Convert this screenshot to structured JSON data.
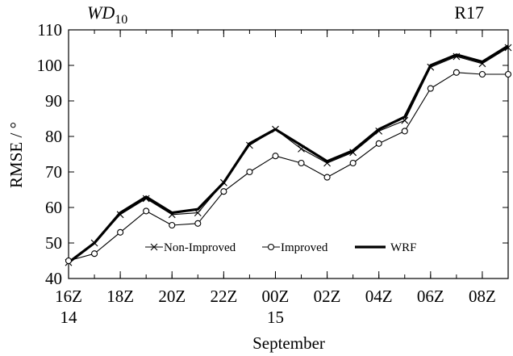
{
  "chart_data": {
    "type": "line",
    "title": "WD",
    "title_subscript": "10",
    "panel_label": "R17",
    "xlabel": "September",
    "ylabel": "RMSE / °",
    "ylim": [
      40,
      110
    ],
    "yticks": [
      40,
      50,
      60,
      70,
      80,
      90,
      100,
      110
    ],
    "xticks": [
      {
        "index": 0,
        "label": "16Z",
        "sublabel": "14"
      },
      {
        "index": 2,
        "label": "18Z",
        "sublabel": ""
      },
      {
        "index": 4,
        "label": "20Z",
        "sublabel": ""
      },
      {
        "index": 6,
        "label": "22Z",
        "sublabel": ""
      },
      {
        "index": 8,
        "label": "00Z",
        "sublabel": "15"
      },
      {
        "index": 10,
        "label": "02Z",
        "sublabel": ""
      },
      {
        "index": 12,
        "label": "04Z",
        "sublabel": ""
      },
      {
        "index": 14,
        "label": "06Z",
        "sublabel": ""
      },
      {
        "index": 16,
        "label": "08Z",
        "sublabel": ""
      }
    ],
    "x_count": 18,
    "legend_position": "lower-center",
    "grid": false,
    "series": [
      {
        "name": "Non-Improved",
        "marker": "x",
        "style": "thin",
        "values": [
          44.5,
          50,
          58,
          62.5,
          58,
          58.5,
          67,
          77.5,
          82,
          76.5,
          72.5,
          75.5,
          81.5,
          84.5,
          99.5,
          102.5,
          100.5,
          105
        ]
      },
      {
        "name": "Improved",
        "marker": "circle",
        "style": "thin",
        "values": [
          45,
          47,
          53,
          59,
          55,
          55.5,
          64.5,
          70,
          74.5,
          72.5,
          68.5,
          72.5,
          78,
          81.5,
          93.5,
          98,
          97.5,
          97.5
        ]
      },
      {
        "name": "WRF",
        "marker": "none",
        "style": "thick",
        "values": [
          44.5,
          50,
          58.5,
          63,
          58.5,
          59.5,
          67,
          78,
          82,
          77.5,
          73,
          76,
          82,
          85.5,
          100,
          103,
          101,
          105.5
        ]
      }
    ]
  }
}
